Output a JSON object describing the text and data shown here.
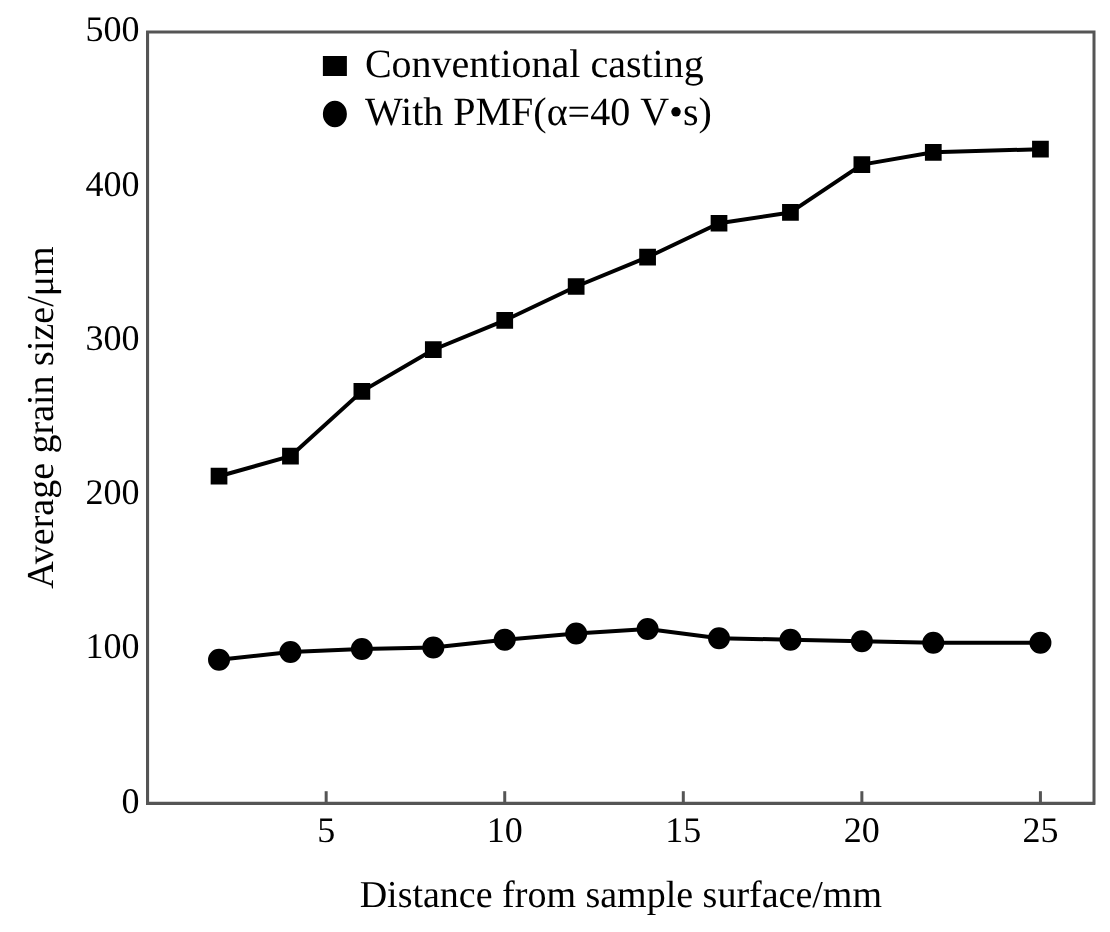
{
  "chart_data": {
    "type": "line",
    "xlabel": "Distance from sample surface/mm",
    "ylabel": "Average grain size/μm",
    "x": [
      2,
      4,
      6,
      8,
      10,
      12,
      14,
      16,
      18,
      20,
      22,
      25
    ],
    "series": [
      {
        "name": "Conventional casting",
        "color": "#000000",
        "marker": "square",
        "values": [
          212,
          225,
          267,
          294,
          313,
          335,
          354,
          376,
          383,
          414,
          422,
          424
        ]
      },
      {
        "name": "With PMF(α=40 V•s)",
        "color": "#000000",
        "marker": "circle",
        "values": [
          93,
          98,
          100,
          101,
          106,
          110,
          113,
          107,
          106,
          105,
          104,
          104
        ]
      }
    ],
    "xlim": [
      0,
      26.5
    ],
    "xticks": [
      5,
      10,
      15,
      20,
      25
    ],
    "ylim": [
      0,
      500
    ],
    "yticks": [
      0,
      100,
      200,
      300,
      400,
      500
    ],
    "grid": false,
    "legend": "top",
    "line_style": "solid"
  }
}
